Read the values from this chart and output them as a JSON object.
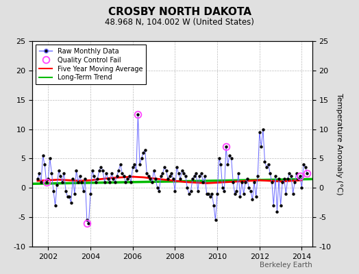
{
  "title": "CROSBY NORTH DAKOTA",
  "subtitle": "48.968 N, 104.002 W (United States)",
  "ylabel_right": "Temperature Anomaly (°C)",
  "attribution": "Berkeley Earth",
  "xlim": [
    2001.25,
    2014.5
  ],
  "ylim": [
    -10,
    25
  ],
  "yticks_left": [
    -10,
    -5,
    0,
    5,
    10,
    15,
    20,
    25
  ],
  "yticks_right": [
    -10,
    -5,
    0,
    5,
    10,
    15,
    20,
    25
  ],
  "xticks": [
    2002,
    2004,
    2006,
    2008,
    2010,
    2012,
    2014
  ],
  "background_color": "#e0e0e0",
  "plot_bg_color": "#ffffff",
  "raw_line_color": "#6666ff",
  "raw_marker_color": "#000000",
  "moving_avg_color": "#ff0000",
  "trend_color": "#00bb00",
  "qc_fail_color": "#ff44ff",
  "raw_x": [
    2001.5,
    2001.583,
    2001.667,
    2001.75,
    2001.833,
    2001.917,
    2002.0,
    2002.083,
    2002.167,
    2002.25,
    2002.333,
    2002.417,
    2002.5,
    2002.583,
    2002.667,
    2002.75,
    2002.833,
    2002.917,
    2003.0,
    2003.083,
    2003.167,
    2003.25,
    2003.333,
    2003.417,
    2003.5,
    2003.583,
    2003.667,
    2003.75,
    2003.833,
    2003.917,
    2004.0,
    2004.083,
    2004.167,
    2004.25,
    2004.333,
    2004.417,
    2004.5,
    2004.583,
    2004.667,
    2004.75,
    2004.833,
    2004.917,
    2005.0,
    2005.083,
    2005.167,
    2005.25,
    2005.333,
    2005.417,
    2005.5,
    2005.583,
    2005.667,
    2005.75,
    2005.833,
    2005.917,
    2006.0,
    2006.083,
    2006.167,
    2006.25,
    2006.333,
    2006.417,
    2006.5,
    2006.583,
    2006.667,
    2006.75,
    2006.833,
    2006.917,
    2007.0,
    2007.083,
    2007.167,
    2007.25,
    2007.333,
    2007.417,
    2007.5,
    2007.583,
    2007.667,
    2007.75,
    2007.833,
    2007.917,
    2008.0,
    2008.083,
    2008.167,
    2008.25,
    2008.333,
    2008.417,
    2008.5,
    2008.583,
    2008.667,
    2008.75,
    2008.833,
    2008.917,
    2009.0,
    2009.083,
    2009.167,
    2009.25,
    2009.333,
    2009.417,
    2009.5,
    2009.583,
    2009.667,
    2009.75,
    2009.833,
    2009.917,
    2010.0,
    2010.083,
    2010.167,
    2010.25,
    2010.333,
    2010.417,
    2010.5,
    2010.583,
    2010.667,
    2010.75,
    2010.833,
    2010.917,
    2011.0,
    2011.083,
    2011.167,
    2011.25,
    2011.333,
    2011.417,
    2011.5,
    2011.583,
    2011.667,
    2011.75,
    2011.833,
    2011.917,
    2012.0,
    2012.083,
    2012.167,
    2012.25,
    2012.333,
    2012.417,
    2012.5,
    2012.583,
    2012.667,
    2012.75,
    2012.833,
    2012.917,
    2013.0,
    2013.083,
    2013.167,
    2013.25,
    2013.333,
    2013.417,
    2013.5,
    2013.583,
    2013.667,
    2013.75,
    2013.833,
    2013.917,
    2014.0,
    2014.083,
    2014.167,
    2014.25
  ],
  "raw_y": [
    1.5,
    2.5,
    1.0,
    5.5,
    4.0,
    1.0,
    1.5,
    5.0,
    2.5,
    -0.5,
    -3.0,
    0.5,
    3.0,
    2.0,
    1.0,
    2.5,
    -0.5,
    -1.5,
    -1.5,
    -2.5,
    1.5,
    -1.0,
    3.0,
    1.0,
    2.0,
    1.0,
    -0.5,
    1.5,
    -5.5,
    -6.0,
    -1.0,
    3.0,
    2.0,
    1.0,
    1.5,
    3.0,
    3.5,
    3.0,
    1.0,
    2.5,
    1.5,
    1.0,
    2.5,
    1.5,
    1.0,
    2.0,
    3.0,
    4.0,
    2.5,
    2.0,
    1.0,
    1.5,
    2.0,
    1.0,
    3.5,
    4.0,
    3.0,
    12.5,
    4.0,
    5.0,
    6.0,
    6.5,
    2.5,
    2.0,
    1.5,
    1.0,
    3.0,
    1.5,
    0.0,
    -0.5,
    2.0,
    2.5,
    3.5,
    3.0,
    1.5,
    2.0,
    2.5,
    1.5,
    -0.5,
    3.5,
    2.5,
    1.5,
    3.0,
    2.5,
    2.0,
    0.0,
    -1.0,
    -0.5,
    1.5,
    2.0,
    2.5,
    -0.5,
    2.0,
    2.5,
    1.0,
    2.0,
    -1.0,
    -1.0,
    -1.5,
    -1.0,
    -3.0,
    -5.5,
    -1.0,
    5.0,
    4.0,
    0.0,
    -0.5,
    7.0,
    4.0,
    5.5,
    5.0,
    1.0,
    -1.0,
    -0.5,
    2.5,
    -1.5,
    1.0,
    -1.0,
    1.0,
    1.5,
    0.0,
    -0.5,
    -2.0,
    1.0,
    -1.5,
    2.0,
    9.5,
    7.0,
    10.0,
    4.5,
    3.5,
    4.0,
    2.5,
    1.0,
    -3.0,
    2.0,
    -4.0,
    1.5,
    -3.0,
    1.0,
    1.5,
    -1.0,
    1.5,
    2.5,
    2.0,
    -1.0,
    1.0,
    2.5,
    1.5,
    2.0,
    0.0,
    4.0,
    3.5,
    2.5
  ],
  "qc_fail_x": [
    2001.917,
    2003.833,
    2006.25,
    2010.417,
    2013.917,
    2014.25
  ],
  "qc_fail_y": [
    1.0,
    -6.0,
    12.5,
    7.0,
    2.0,
    2.5
  ],
  "moving_avg_x": [
    2001.5,
    2002.0,
    2002.5,
    2003.0,
    2003.5,
    2004.0,
    2004.5,
    2005.0,
    2005.5,
    2006.0,
    2006.5,
    2007.0,
    2007.5,
    2008.0,
    2008.5,
    2009.0,
    2009.5,
    2010.0,
    2010.5,
    2011.0,
    2011.5,
    2012.0,
    2012.5,
    2013.0,
    2013.5,
    2014.0
  ],
  "moving_avg_y": [
    1.2,
    1.3,
    1.4,
    1.3,
    1.2,
    1.3,
    1.5,
    1.7,
    1.8,
    1.9,
    1.8,
    1.6,
    1.4,
    1.2,
    1.0,
    0.9,
    0.8,
    0.9,
    1.0,
    1.1,
    1.2,
    1.3,
    1.2,
    1.1,
    1.2,
    1.3
  ],
  "trend_x": [
    2001.25,
    2014.5
  ],
  "trend_y": [
    0.7,
    1.5
  ]
}
